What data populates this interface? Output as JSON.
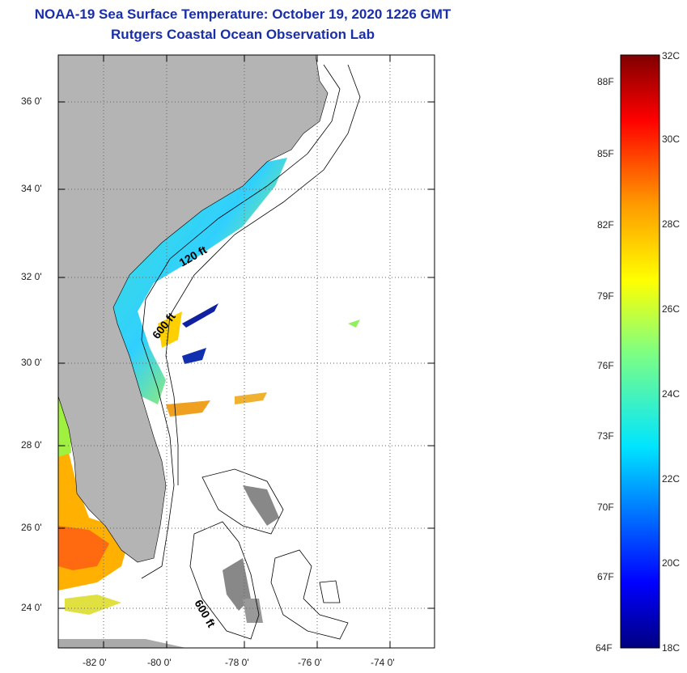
{
  "title": "NOAA-19 Sea Surface Temperature:  October 19, 2020 1226 GMT",
  "subtitle": "Rutgers Coastal Ocean Observation Lab",
  "map": {
    "lon_labels": [
      "-82 0'",
      "-80 0'",
      "-78 0'",
      "-76 0'",
      "-74 0'"
    ],
    "lat_labels": [
      "36 0'",
      "34 0'",
      "32 0'",
      "30 0'",
      "28 0'",
      "26 0'",
      "24 0'"
    ],
    "contour_labels": [
      "120 ft",
      "600 ft",
      "600 ft"
    ],
    "land_color": "#b4b4b4",
    "no_data_color": "#ffffff"
  },
  "colorbar": {
    "celsius_labels": [
      "32C",
      "30C",
      "28C",
      "26C",
      "24C",
      "22C",
      "20C",
      "18C"
    ],
    "fahrenheit_labels": [
      "88F",
      "85F",
      "82F",
      "79F",
      "76F",
      "73F",
      "70F",
      "67F",
      "64F"
    ],
    "range_c": [
      18,
      32
    ]
  }
}
